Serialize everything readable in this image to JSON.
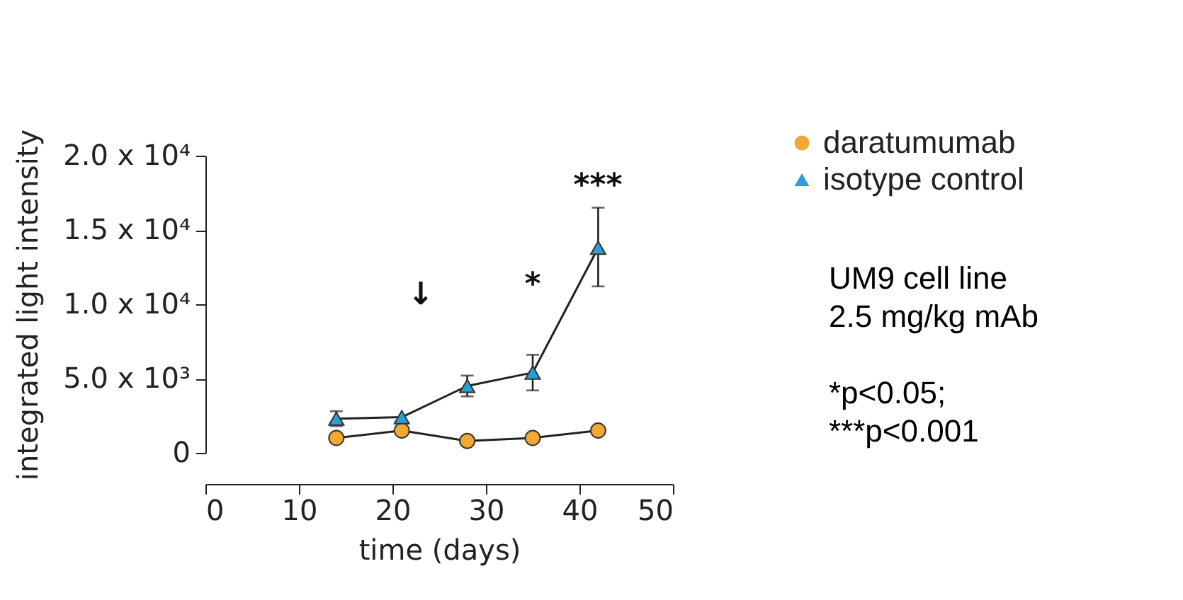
{
  "chart_data": {
    "type": "line",
    "xlabel": "time (days)",
    "ylabel": "integrated light intensity",
    "x": [
      14,
      21,
      28,
      35,
      42
    ],
    "series": [
      {
        "name": "daratumumab",
        "color": "#f5a733",
        "marker": "circle",
        "values": [
          1000,
          1500,
          800,
          1000,
          1500
        ]
      },
      {
        "name": "isotype control",
        "color": "#2a9fd6",
        "marker": "triangle",
        "values": [
          2300,
          2400,
          4500,
          5400,
          13800
        ],
        "errors": [
          500,
          null,
          700,
          1200,
          [
            11200,
            16500
          ]
        ]
      }
    ],
    "xlim": [
      0,
      50
    ],
    "xticks": [
      0,
      10,
      20,
      30,
      40,
      50
    ],
    "ylim": [
      0,
      20000
    ],
    "yticks": [
      {
        "value": 0,
        "label": "0"
      },
      {
        "value": 5000,
        "label": "5.0 x 10³"
      },
      {
        "value": 10000,
        "label": "1.0 x 10⁴"
      },
      {
        "value": 15000,
        "label": "1.5 x 10⁴"
      },
      {
        "value": 20000,
        "label": "2.0 x 10⁴"
      }
    ],
    "annotations": [
      "***",
      "*",
      "↓",
      "UM9 cell line",
      "2.5 mg/kg mAb",
      "*p<0.05;",
      "***p<0.001"
    ],
    "legend": "top right",
    "grid": false
  }
}
